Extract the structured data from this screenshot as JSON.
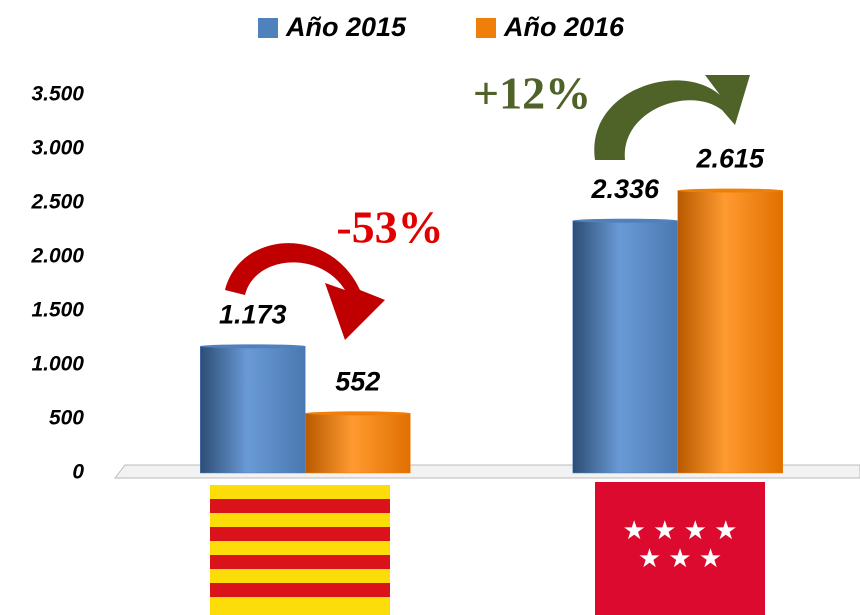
{
  "chart_data": {
    "type": "bar",
    "categories": [
      null,
      null
    ],
    "series": [
      {
        "name": "Año 2015",
        "color": "#4f81bd",
        "values": [
          1173,
          2336
        ],
        "value_labels": [
          "1.173",
          "2.336"
        ]
      },
      {
        "name": "Año 2016",
        "color": "#f07f09",
        "values": [
          552,
          2615
        ],
        "value_labels": [
          "552",
          "2.615"
        ]
      }
    ],
    "ylim": [
      0,
      3500
    ],
    "yticks": [
      {
        "value": 0,
        "label": "0"
      },
      {
        "value": 500,
        "label": "500"
      },
      {
        "value": 1000,
        "label": "1.000"
      },
      {
        "value": 1500,
        "label": "1.500"
      },
      {
        "value": 2000,
        "label": "2.000"
      },
      {
        "value": 2500,
        "label": "2.500"
      },
      {
        "value": 3000,
        "label": "3.000"
      },
      {
        "value": 3500,
        "label": "3.500"
      }
    ],
    "annotations": [
      "-53%",
      "+12%"
    ],
    "legend": "top"
  }
}
